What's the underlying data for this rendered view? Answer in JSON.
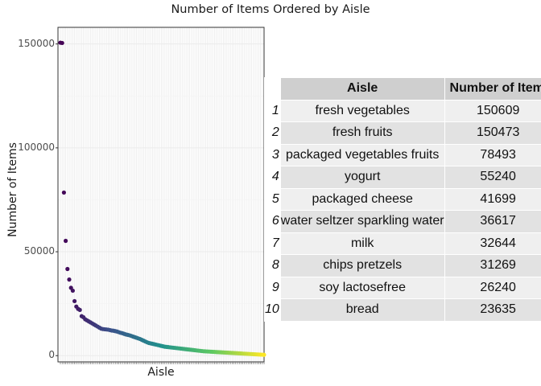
{
  "chart_data": {
    "type": "scatter",
    "title": "Number of Items Ordered by Aisle",
    "xlabel": "Aisle",
    "ylabel": "Number of Items",
    "ylim": [
      -3000,
      158000
    ],
    "yticks": [
      0,
      50000,
      100000,
      150000
    ],
    "ytick_labels": [
      "0",
      "50000",
      "100000",
      "150000"
    ],
    "grid": true,
    "colormap": [
      "#440154",
      "#3b528b",
      "#21918c",
      "#5ec962",
      "#fde725"
    ],
    "values": [
      150609,
      150473,
      78493,
      55240,
      41699,
      36617,
      32644,
      31269,
      26240,
      23635,
      22500,
      22000,
      19000,
      18500,
      17500,
      17000,
      16500,
      16000,
      15500,
      15000,
      14500,
      14000,
      13500,
      13000,
      12800,
      12700,
      12600,
      12500,
      12300,
      12100,
      12000,
      11800,
      11600,
      11300,
      11000,
      10800,
      10500,
      10200,
      10000,
      9800,
      9500,
      9200,
      8900,
      8600,
      8300,
      8000,
      7600,
      7200,
      6800,
      6400,
      6100,
      5900,
      5700,
      5500,
      5300,
      5100,
      4900,
      4700,
      4500,
      4300,
      4200,
      4100,
      4000,
      3900,
      3800,
      3700,
      3600,
      3500,
      3400,
      3300,
      3200,
      3100,
      3000,
      2900,
      2800,
      2700,
      2600,
      2500,
      2400,
      2300,
      2200,
      2100,
      2050,
      2000,
      1950,
      1900,
      1850,
      1800,
      1750,
      1700,
      1650,
      1600,
      1550,
      1500,
      1450,
      1400,
      1350,
      1300,
      1250,
      1200,
      1150,
      1100,
      1050,
      1000,
      950,
      900,
      850,
      800,
      750,
      700,
      650,
      600,
      550,
      500,
      450,
      400
    ]
  },
  "table": {
    "headers": [
      "Aisle",
      "Number of Items"
    ],
    "rows": [
      {
        "index": "1",
        "aisle": "fresh vegetables",
        "count": "150609"
      },
      {
        "index": "2",
        "aisle": "fresh fruits",
        "count": "150473"
      },
      {
        "index": "3",
        "aisle": "packaged vegetables fruits",
        "count": "78493"
      },
      {
        "index": "4",
        "aisle": "yogurt",
        "count": "55240"
      },
      {
        "index": "5",
        "aisle": "packaged cheese",
        "count": "41699"
      },
      {
        "index": "6",
        "aisle": "water seltzer sparkling water",
        "count": "36617"
      },
      {
        "index": "7",
        "aisle": "milk",
        "count": "32644"
      },
      {
        "index": "8",
        "aisle": "chips pretzels",
        "count": "31269"
      },
      {
        "index": "9",
        "aisle": "soy lactosefree",
        "count": "26240"
      },
      {
        "index": "10",
        "aisle": "bread",
        "count": "23635"
      }
    ]
  }
}
